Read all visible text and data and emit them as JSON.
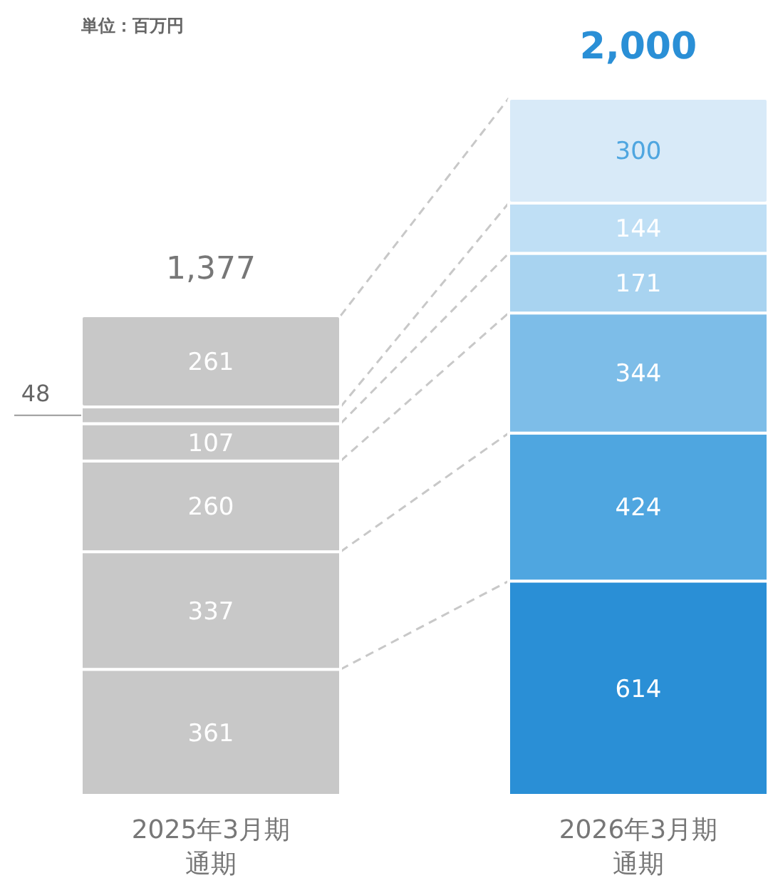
{
  "chart_data": {
    "type": "bar",
    "stacked": true,
    "data_labels": true,
    "categories": [
      "2025年3月期通期",
      "2026年3月期通期"
    ],
    "series": [
      {
        "colors": [
          "#c8c8c8",
          "#2a8fd6"
        ],
        "values": [
          361,
          614
        ]
      },
      {
        "colors": [
          "#c8c8c8",
          "#4fa6e0"
        ],
        "values": [
          337,
          424
        ]
      },
      {
        "colors": [
          "#c8c8c8",
          "#7dbde8"
        ],
        "values": [
          260,
          344
        ]
      },
      {
        "colors": [
          "#c8c8c8",
          "#a8d3f0"
        ],
        "values": [
          107,
          171
        ]
      },
      {
        "colors": [
          "#c8c8c8",
          "#bfdff5"
        ],
        "values": [
          48,
          144
        ]
      },
      {
        "colors": [
          "#c8c8c8",
          "#d8eaf8"
        ],
        "values": [
          261,
          300
        ]
      }
    ],
    "totals": [
      "1,377",
      "2,000"
    ],
    "annotations": [
      "単位：百万円"
    ]
  }
}
